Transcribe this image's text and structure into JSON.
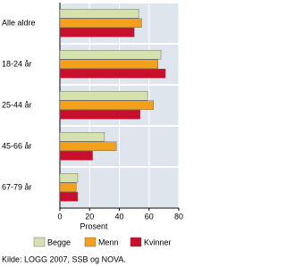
{
  "chart_data": {
    "type": "bar",
    "orientation": "horizontal",
    "categories": [
      "Alle aldre",
      "18-24 år",
      "25-44 år",
      "45-66 år",
      "67-79 år"
    ],
    "series": [
      {
        "name": "Begge",
        "color": "#d5e2ad",
        "values": [
          53,
          68,
          59,
          30,
          12
        ]
      },
      {
        "name": "Menn",
        "color": "#f5a01a",
        "values": [
          55,
          66,
          63,
          38,
          11
        ]
      },
      {
        "name": "Kvinner",
        "color": "#c8102e",
        "values": [
          50,
          71,
          54,
          22,
          12
        ]
      }
    ],
    "xlim": [
      0,
      80
    ],
    "xticks": [
      0,
      20,
      40,
      60,
      80
    ],
    "xlabel": "Prosent",
    "source": "Kilde: LOGG 2007, SSB og NOVA."
  }
}
